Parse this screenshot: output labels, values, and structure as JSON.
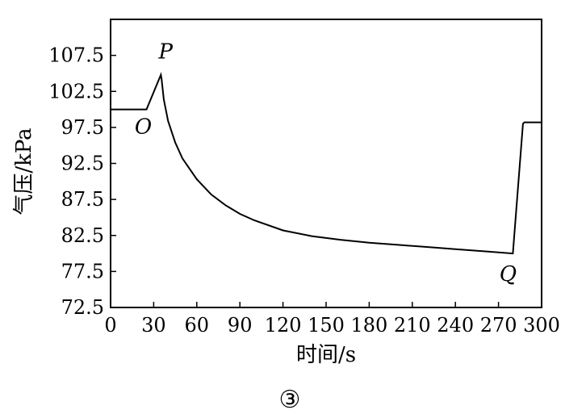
{
  "chart_data": {
    "type": "line",
    "xlabel": "时间/s",
    "ylabel": "气压/kPa",
    "xlim": [
      0,
      300
    ],
    "ylim": [
      72.5,
      112.5
    ],
    "x_ticks": [
      0,
      30,
      60,
      90,
      120,
      150,
      180,
      210,
      240,
      270,
      300
    ],
    "y_ticks": [
      72.5,
      77.5,
      82.5,
      87.5,
      92.5,
      97.5,
      102.5,
      107.5
    ],
    "y_tick_labels": [
      "72.5",
      "77.5",
      "82.5",
      "87.5",
      "92.5",
      "97.5",
      "102.5",
      "107.5"
    ],
    "grid": false,
    "series": [
      {
        "x": [
          0,
          25,
          35,
          35.5,
          37,
          40,
          45,
          50,
          60,
          70,
          80,
          90,
          100,
          120,
          140,
          160,
          180,
          200,
          220,
          240,
          260,
          280,
          287,
          288,
          300
        ],
        "y": [
          100.0,
          100.0,
          104.8,
          104.2,
          101.4,
          98.4,
          95.4,
          93.2,
          90.3,
          88.2,
          86.7,
          85.5,
          84.6,
          83.2,
          82.4,
          81.9,
          81.5,
          81.2,
          80.9,
          80.6,
          80.3,
          80.0,
          98.0,
          98.2,
          98.2
        ]
      }
    ],
    "annotations": [
      {
        "text": "P",
        "x": 35,
        "y": 104.8
      },
      {
        "text": "O",
        "x": 25,
        "y": 100.0
      },
      {
        "text": "Q",
        "x": 280,
        "y": 80.0
      }
    ],
    "caption": "③"
  }
}
